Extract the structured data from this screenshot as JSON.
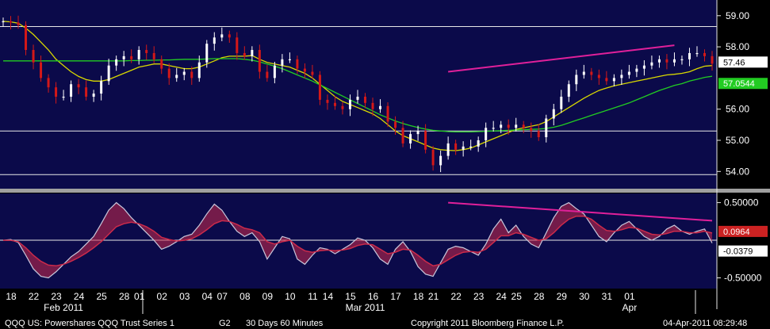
{
  "chart_data": [
    {
      "type": "candlestick",
      "title": "",
      "ylim": [
        53.6,
        59.3
      ],
      "y_ticks": [
        "59.00",
        "58.00",
        "56.00",
        "55.00",
        "54.00"
      ],
      "horizontal_lines": [
        58.65,
        55.3,
        53.9
      ],
      "value_tags": [
        {
          "label": "57.46",
          "value": 57.46,
          "color": "#ffffff",
          "text_color": "#000000"
        },
        {
          "label": "57.0544",
          "value": 57.0544,
          "color": "#22cc22",
          "text_color": "#ffffff"
        }
      ],
      "closes": [
        58.82,
        58.78,
        58.7,
        57.9,
        57.5,
        57.0,
        56.7,
        56.4,
        56.4,
        56.8,
        56.7,
        56.4,
        56.5,
        56.9,
        57.4,
        57.6,
        57.7,
        57.6,
        57.9,
        57.8,
        57.6,
        57.3,
        57.0,
        57.1,
        57.2,
        57.0,
        57.5,
        58.1,
        58.3,
        58.4,
        58.3,
        57.8,
        57.7,
        57.9,
        57.2,
        57.0,
        57.4,
        57.6,
        57.6,
        57.3,
        57.2,
        57.1,
        56.3,
        56.2,
        56.1,
        56.0,
        56.3,
        56.4,
        56.2,
        56.0,
        56.1,
        55.6,
        55.4,
        54.9,
        55.2,
        55.3,
        54.7,
        54.2,
        54.5,
        54.9,
        54.7,
        54.8,
        54.8,
        55.0,
        55.4,
        55.4,
        55.5,
        55.4,
        55.5,
        55.4,
        55.3,
        55.1,
        55.7,
        56.0,
        56.4,
        56.8,
        57.1,
        57.2,
        57.1,
        57.0,
        56.9,
        57.0,
        57.1,
        57.2,
        57.3,
        57.4,
        57.5,
        57.6,
        57.5,
        57.6,
        57.6,
        57.8,
        57.8,
        57.7,
        57.46
      ],
      "series": [
        {
          "name": "",
          "color": "#d8d800",
          "values": [
            58.82,
            58.8,
            58.76,
            58.6,
            58.4,
            58.15,
            57.9,
            57.6,
            57.4,
            57.2,
            57.05,
            56.95,
            56.9,
            56.9,
            56.95,
            57.05,
            57.15,
            57.25,
            57.35,
            57.4,
            57.45,
            57.45,
            57.4,
            57.35,
            57.3,
            57.3,
            57.35,
            57.45,
            57.55,
            57.65,
            57.7,
            57.7,
            57.7,
            57.72,
            57.6,
            57.5,
            57.45,
            57.4,
            57.35,
            57.25,
            57.15,
            57.0,
            56.8,
            56.6,
            56.4,
            56.25,
            56.15,
            56.05,
            55.95,
            55.85,
            55.7,
            55.5,
            55.3,
            55.15,
            55.05,
            54.95,
            54.85,
            54.75,
            54.7,
            54.68,
            54.67,
            54.7,
            54.75,
            54.85,
            54.95,
            55.05,
            55.15,
            55.25,
            55.35,
            55.4,
            55.45,
            55.5,
            55.6,
            55.75,
            55.9,
            56.05,
            56.2,
            56.35,
            56.48,
            56.6,
            56.68,
            56.75,
            56.8,
            56.85,
            56.9,
            56.95,
            57.0,
            57.05,
            57.1,
            57.12,
            57.15,
            57.2,
            57.3,
            57.38,
            57.4
          ]
        },
        {
          "name": "",
          "color": "#22cc22",
          "values": [
            57.55,
            57.55,
            57.55,
            57.55,
            57.55,
            57.55,
            57.55,
            57.55,
            57.55,
            57.55,
            57.55,
            57.55,
            57.55,
            57.55,
            57.55,
            57.55,
            57.55,
            57.56,
            57.56,
            57.57,
            57.57,
            57.58,
            57.58,
            57.59,
            57.6,
            57.6,
            57.6,
            57.61,
            57.62,
            57.62,
            57.62,
            57.62,
            57.6,
            57.57,
            57.52,
            57.45,
            57.38,
            57.3,
            57.2,
            57.1,
            57.0,
            56.9,
            56.78,
            56.66,
            56.54,
            56.42,
            56.3,
            56.18,
            56.06,
            55.94,
            55.82,
            55.72,
            55.62,
            55.54,
            55.47,
            55.41,
            55.36,
            55.32,
            55.3,
            55.28,
            55.27,
            55.27,
            55.27,
            55.28,
            55.29,
            55.3,
            55.31,
            55.32,
            55.33,
            55.34,
            55.35,
            55.36,
            55.38,
            55.42,
            55.48,
            55.56,
            55.64,
            55.72,
            55.8,
            55.88,
            55.96,
            56.04,
            56.12,
            56.2,
            56.3,
            56.4,
            56.5,
            56.6,
            56.68,
            56.76,
            56.82,
            56.9,
            56.96,
            57.02,
            57.0544
          ]
        }
      ],
      "trendline": {
        "color": "#e0209a",
        "from": [
          59,
          57.2
        ],
        "to": [
          89,
          58.05
        ]
      }
    },
    {
      "type": "area",
      "title": "",
      "ylim": [
        -0.6,
        0.58
      ],
      "y_ticks": [
        "0.50000",
        "-0.50000"
      ],
      "value_tags": [
        {
          "label": "0.0964",
          "value": 0.0964,
          "color": "#cc2222",
          "text_color": "#ffffff"
        },
        {
          "label": "-0.0379",
          "value": -0.0379,
          "color": "#ffffff",
          "text_color": "#000000"
        }
      ],
      "series": [
        {
          "name": "",
          "color": "#c8c8dc",
          "values": [
            0.0,
            0.01,
            -0.03,
            -0.2,
            -0.38,
            -0.48,
            -0.5,
            -0.42,
            -0.32,
            -0.22,
            -0.15,
            -0.05,
            0.05,
            0.22,
            0.4,
            0.5,
            0.42,
            0.3,
            0.2,
            0.1,
            0.0,
            -0.12,
            -0.08,
            -0.02,
            0.05,
            0.08,
            0.2,
            0.35,
            0.48,
            0.4,
            0.25,
            0.12,
            0.05,
            0.1,
            -0.02,
            -0.25,
            -0.1,
            0.05,
            0.02,
            -0.25,
            -0.32,
            -0.2,
            -0.1,
            -0.12,
            -0.18,
            -0.12,
            -0.06,
            0.03,
            0.0,
            -0.1,
            -0.25,
            -0.32,
            -0.12,
            -0.02,
            -0.15,
            -0.35,
            -0.45,
            -0.48,
            -0.3,
            -0.12,
            -0.08,
            -0.1,
            -0.15,
            -0.2,
            -0.05,
            0.15,
            0.28,
            0.1,
            0.2,
            0.05,
            -0.05,
            -0.1,
            0.1,
            0.3,
            0.45,
            0.5,
            0.42,
            0.35,
            0.2,
            0.05,
            -0.02,
            0.1,
            0.2,
            0.25,
            0.15,
            0.05,
            0.0,
            0.05,
            0.15,
            0.2,
            0.12,
            0.08,
            0.12,
            0.15,
            -0.0379
          ]
        },
        {
          "name": "",
          "color": "#cc2a4a",
          "values": [
            0.0,
            0.0,
            -0.02,
            -0.1,
            -0.2,
            -0.28,
            -0.33,
            -0.34,
            -0.32,
            -0.28,
            -0.23,
            -0.17,
            -0.1,
            -0.02,
            0.08,
            0.18,
            0.22,
            0.24,
            0.22,
            0.18,
            0.12,
            0.04,
            0.01,
            -0.01,
            0.0,
            0.02,
            0.07,
            0.14,
            0.22,
            0.26,
            0.25,
            0.21,
            0.16,
            0.14,
            0.1,
            -0.02,
            -0.05,
            -0.02,
            0.0,
            -0.08,
            -0.14,
            -0.16,
            -0.14,
            -0.13,
            -0.14,
            -0.13,
            -0.11,
            -0.07,
            -0.05,
            -0.06,
            -0.12,
            -0.18,
            -0.16,
            -0.12,
            -0.13,
            -0.2,
            -0.28,
            -0.34,
            -0.32,
            -0.26,
            -0.2,
            -0.16,
            -0.15,
            -0.16,
            -0.12,
            -0.03,
            0.06,
            0.06,
            0.1,
            0.08,
            0.04,
            0.0,
            0.02,
            0.1,
            0.2,
            0.28,
            0.32,
            0.32,
            0.28,
            0.2,
            0.13,
            0.12,
            0.14,
            0.17,
            0.16,
            0.12,
            0.08,
            0.07,
            0.09,
            0.12,
            0.12,
            0.1,
            0.1,
            0.12,
            0.0964
          ]
        }
      ],
      "zero_line": 0,
      "trendline": {
        "color": "#e0209a",
        "from": [
          59,
          0.5
        ],
        "to": [
          94,
          0.26
        ]
      }
    }
  ],
  "x_axis": {
    "day_labels": [
      {
        "label": "18",
        "i": 0
      },
      {
        "label": "22",
        "i": 3
      },
      {
        "label": "23",
        "i": 6
      },
      {
        "label": "24",
        "i": 9
      },
      {
        "label": "25",
        "i": 12
      },
      {
        "label": "28",
        "i": 15
      },
      {
        "label": "01",
        "i": 17
      },
      {
        "label": "02",
        "i": 20
      },
      {
        "label": "03",
        "i": 23
      },
      {
        "label": "04",
        "i": 26
      },
      {
        "label": "07",
        "i": 28
      },
      {
        "label": "08",
        "i": 31
      },
      {
        "label": "09",
        "i": 34
      },
      {
        "label": "10",
        "i": 37
      },
      {
        "label": "11",
        "i": 40
      },
      {
        "label": "14",
        "i": 42
      },
      {
        "label": "15",
        "i": 45
      },
      {
        "label": "16",
        "i": 48
      },
      {
        "label": "17",
        "i": 51
      },
      {
        "label": "18",
        "i": 54
      },
      {
        "label": "21",
        "i": 56
      },
      {
        "label": "22",
        "i": 59
      },
      {
        "label": "23",
        "i": 62
      },
      {
        "label": "24",
        "i": 65
      },
      {
        "label": "25",
        "i": 67
      },
      {
        "label": "28",
        "i": 70
      },
      {
        "label": "29",
        "i": 73
      },
      {
        "label": "30",
        "i": 76
      },
      {
        "label": "31",
        "i": 79
      },
      {
        "label": "01",
        "i": 82
      }
    ],
    "month_labels": [
      {
        "label": "Feb 2011",
        "i": 8
      },
      {
        "label": "Mar 2011",
        "i": 48
      },
      {
        "label": "Apr",
        "i": 82
      }
    ]
  },
  "footer": {
    "security": "QQQ  US:  Powershares QQQ Trust Series 1",
    "g": "G2",
    "range": "30 Days  60 Minutes",
    "copyright": "Copyright 2011 Bloomberg Finance L.P.",
    "timestamp": "04-Apr-2011  08:29:48"
  },
  "colors": {
    "background": "#0b0a4a",
    "up_candle": "#ffffff",
    "down_candle": "#d41818",
    "grid_line": "#e8e8e8",
    "separator": "#a0a0a0"
  }
}
